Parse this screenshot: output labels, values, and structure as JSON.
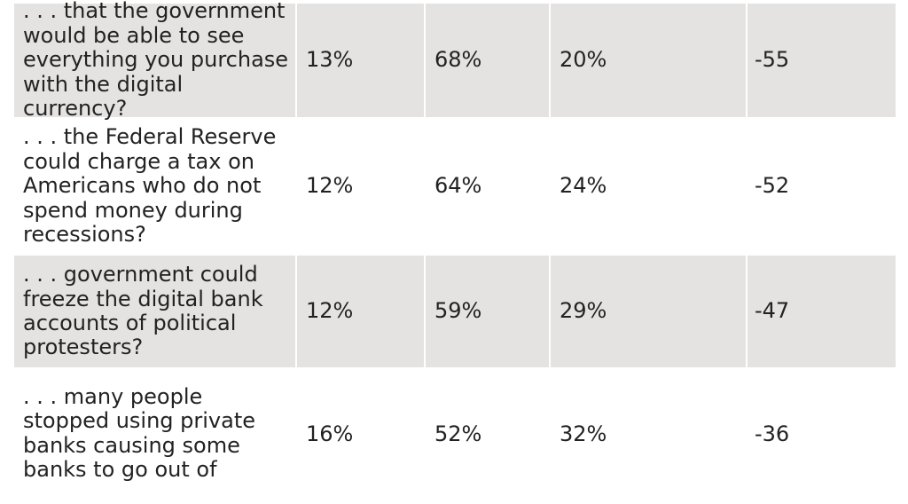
{
  "rows": [
    {
      "question": ". . . that the government\nwould be able to see\neverything you purchase\nwith the digital currency?",
      "v1": "13%",
      "v2": "68%",
      "v3": "20%",
      "net": "-55"
    },
    {
      "question": ". . . the Federal Reserve\ncould charge a tax on\nAmericans who do not\nspend money during\nrecessions?",
      "v1": "12%",
      "v2": "64%",
      "v3": "24%",
      "net": "-52"
    },
    {
      "question": ". . . government could\nfreeze the digital bank\naccounts of political\nprotesters?",
      "v1": "12%",
      "v2": "59%",
      "v3": "29%",
      "net": "-47"
    },
    {
      "question": ". . . many people\nstopped using private\nbanks causing some\nbanks to go out of",
      "v1": "16%",
      "v2": "52%",
      "v3": "32%",
      "net": "-36"
    }
  ],
  "colors": {
    "shaded_row": "#e4e3e1",
    "plain_row": "#ffffff",
    "text": "#222222"
  }
}
